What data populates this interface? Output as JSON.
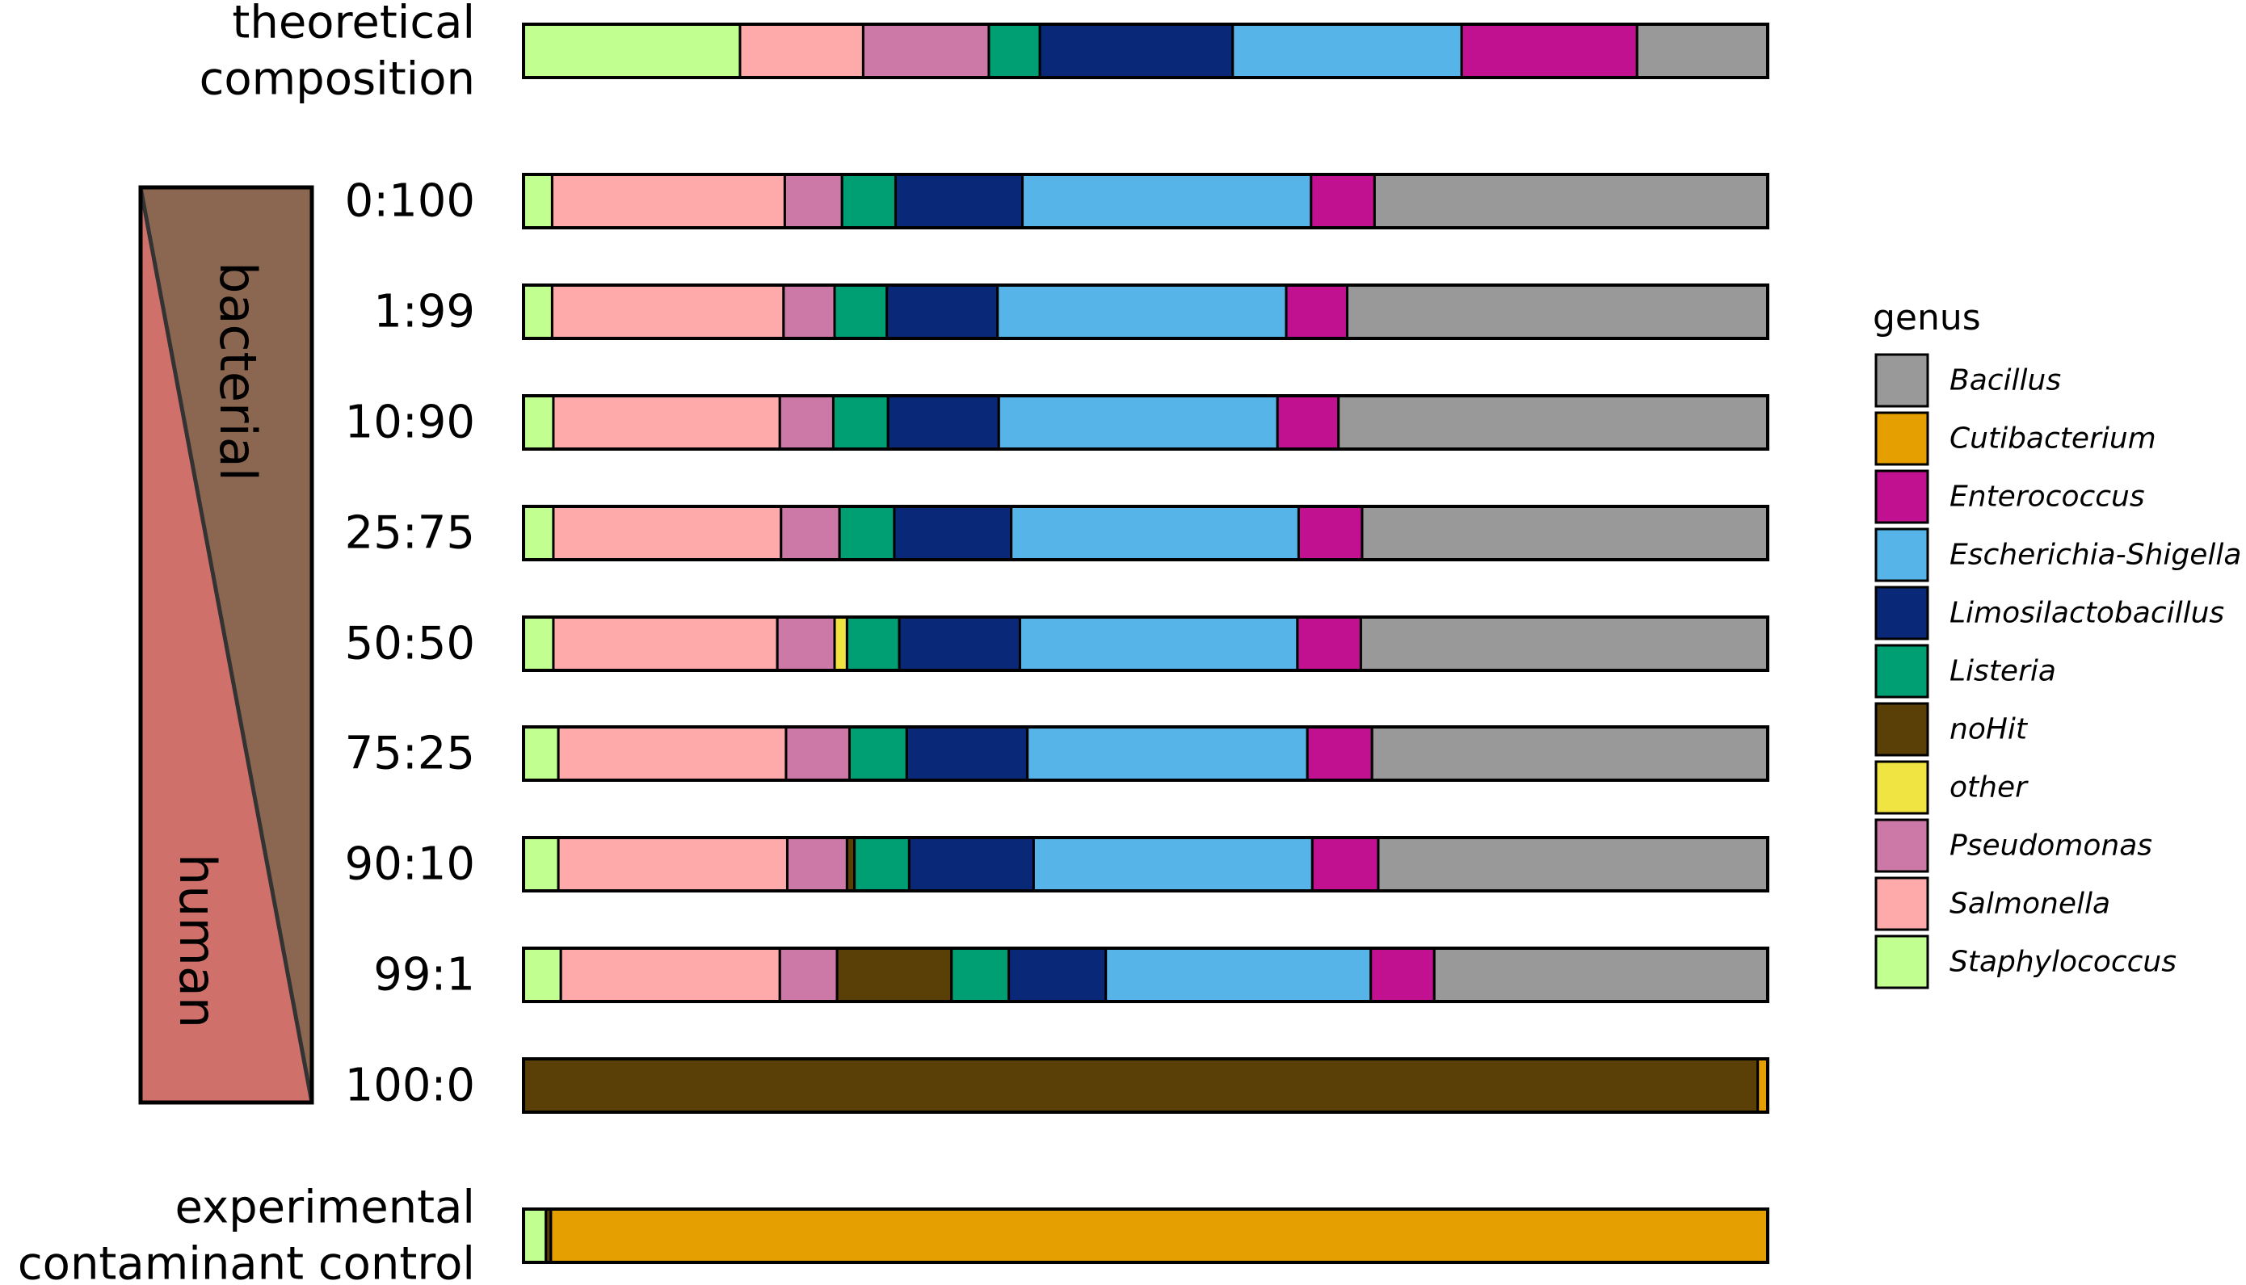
{
  "chart_data": {
    "type": "bar",
    "orientation": "horizontal",
    "stacked": true,
    "normalized": true,
    "legend": {
      "title": "genus",
      "placement": "right",
      "entries": [
        {
          "name": "Bacillus",
          "color": "#999999"
        },
        {
          "name": "Cutibacterium",
          "color": "#E69F00"
        },
        {
          "name": "Enterococcus",
          "color": "#C11190"
        },
        {
          "name": "Escherichia-Shigella",
          "color": "#56B4E9"
        },
        {
          "name": "Limosilactobacillus",
          "color": "#0A2878"
        },
        {
          "name": "Listeria",
          "color": "#009E73"
        },
        {
          "name": "noHit",
          "color": "#5A3F07"
        },
        {
          "name": "other",
          "color": "#F0E442"
        },
        {
          "name": "Pseudomonas",
          "color": "#CC79A7"
        },
        {
          "name": "Salmonella",
          "color": "#FFAAAA"
        },
        {
          "name": "Staphylococcus",
          "color": "#C0FF90"
        }
      ]
    },
    "gradient_panel": {
      "top_label": "bacterial",
      "bottom_label": "human",
      "top_color": "#8B6650",
      "bottom_color": "#D0706A"
    },
    "rows": [
      {
        "label": [
          "theoretical",
          "composition"
        ],
        "segments": [
          {
            "genus": "Staphylococcus",
            "value": 17.4
          },
          {
            "genus": "Salmonella",
            "value": 9.9
          },
          {
            "genus": "Pseudomonas",
            "value": 10.1
          },
          {
            "genus": "Listeria",
            "value": 4.1
          },
          {
            "genus": "Limosilactobacillus",
            "value": 15.5
          },
          {
            "genus": "Escherichia-Shigella",
            "value": 18.4
          },
          {
            "genus": "Enterococcus",
            "value": 14.1
          },
          {
            "genus": "Bacillus",
            "value": 10.5
          }
        ]
      },
      {
        "label": [
          "0:100"
        ],
        "segments": [
          {
            "genus": "Staphylococcus",
            "value": 2.3
          },
          {
            "genus": "Salmonella",
            "value": 18.7
          },
          {
            "genus": "Pseudomonas",
            "value": 4.6
          },
          {
            "genus": "Listeria",
            "value": 4.3
          },
          {
            "genus": "Limosilactobacillus",
            "value": 10.2
          },
          {
            "genus": "Escherichia-Shigella",
            "value": 23.2
          },
          {
            "genus": "Enterococcus",
            "value": 5.1
          },
          {
            "genus": "Bacillus",
            "value": 31.6
          }
        ]
      },
      {
        "label": [
          "1:99"
        ],
        "segments": [
          {
            "genus": "Staphylococcus",
            "value": 2.3
          },
          {
            "genus": "Salmonella",
            "value": 18.6
          },
          {
            "genus": "Pseudomonas",
            "value": 4.1
          },
          {
            "genus": "Listeria",
            "value": 4.2
          },
          {
            "genus": "Limosilactobacillus",
            "value": 8.9
          },
          {
            "genus": "Escherichia-Shigella",
            "value": 23.2
          },
          {
            "genus": "Enterococcus",
            "value": 4.9
          },
          {
            "genus": "Bacillus",
            "value": 33.8
          }
        ]
      },
      {
        "label": [
          "10:90"
        ],
        "segments": [
          {
            "genus": "Staphylococcus",
            "value": 2.4
          },
          {
            "genus": "Salmonella",
            "value": 18.2
          },
          {
            "genus": "Pseudomonas",
            "value": 4.3
          },
          {
            "genus": "Listeria",
            "value": 4.4
          },
          {
            "genus": "Limosilactobacillus",
            "value": 8.9
          },
          {
            "genus": "Escherichia-Shigella",
            "value": 22.4
          },
          {
            "genus": "Enterococcus",
            "value": 4.9
          },
          {
            "genus": "Bacillus",
            "value": 34.5
          }
        ]
      },
      {
        "label": [
          "25:75"
        ],
        "segments": [
          {
            "genus": "Staphylococcus",
            "value": 2.4
          },
          {
            "genus": "Salmonella",
            "value": 18.3
          },
          {
            "genus": "Pseudomonas",
            "value": 4.7
          },
          {
            "genus": "Listeria",
            "value": 4.4
          },
          {
            "genus": "Limosilactobacillus",
            "value": 9.4
          },
          {
            "genus": "Escherichia-Shigella",
            "value": 23.1
          },
          {
            "genus": "Enterococcus",
            "value": 5.1
          },
          {
            "genus": "Bacillus",
            "value": 32.6
          }
        ]
      },
      {
        "label": [
          "50:50"
        ],
        "segments": [
          {
            "genus": "Staphylococcus",
            "value": 2.4
          },
          {
            "genus": "Salmonella",
            "value": 18.0
          },
          {
            "genus": "Pseudomonas",
            "value": 4.6
          },
          {
            "genus": "other",
            "value": 1.0
          },
          {
            "genus": "Listeria",
            "value": 4.2
          },
          {
            "genus": "Limosilactobacillus",
            "value": 9.7
          },
          {
            "genus": "Escherichia-Shigella",
            "value": 22.3
          },
          {
            "genus": "Enterococcus",
            "value": 5.1
          },
          {
            "genus": "Bacillus",
            "value": 32.7
          }
        ]
      },
      {
        "label": [
          "75:25"
        ],
        "segments": [
          {
            "genus": "Staphylococcus",
            "value": 2.8
          },
          {
            "genus": "Salmonella",
            "value": 18.3
          },
          {
            "genus": "Pseudomonas",
            "value": 5.1
          },
          {
            "genus": "Listeria",
            "value": 4.6
          },
          {
            "genus": "Limosilactobacillus",
            "value": 9.7
          },
          {
            "genus": "Escherichia-Shigella",
            "value": 22.5
          },
          {
            "genus": "Enterococcus",
            "value": 5.2
          },
          {
            "genus": "Bacillus",
            "value": 31.8
          }
        ]
      },
      {
        "label": [
          "90:10"
        ],
        "segments": [
          {
            "genus": "Staphylococcus",
            "value": 2.8
          },
          {
            "genus": "Salmonella",
            "value": 18.4
          },
          {
            "genus": "Pseudomonas",
            "value": 4.8
          },
          {
            "genus": "noHit",
            "value": 0.6
          },
          {
            "genus": "Listeria",
            "value": 4.4
          },
          {
            "genus": "Limosilactobacillus",
            "value": 10.0
          },
          {
            "genus": "Escherichia-Shigella",
            "value": 22.4
          },
          {
            "genus": "Enterococcus",
            "value": 5.3
          },
          {
            "genus": "Bacillus",
            "value": 31.3
          }
        ]
      },
      {
        "label": [
          "99:1"
        ],
        "segments": [
          {
            "genus": "Staphylococcus",
            "value": 3.0
          },
          {
            "genus": "Salmonella",
            "value": 17.6
          },
          {
            "genus": "Pseudomonas",
            "value": 4.6
          },
          {
            "genus": "noHit",
            "value": 9.2
          },
          {
            "genus": "Listeria",
            "value": 4.6
          },
          {
            "genus": "Limosilactobacillus",
            "value": 7.8
          },
          {
            "genus": "Escherichia-Shigella",
            "value": 21.3
          },
          {
            "genus": "Enterococcus",
            "value": 5.1
          },
          {
            "genus": "Bacillus",
            "value": 26.8
          }
        ]
      },
      {
        "label": [
          "100:0"
        ],
        "segments": [
          {
            "genus": "noHit",
            "value": 99.2
          },
          {
            "genus": "Cutibacterium",
            "value": 0.8
          }
        ]
      },
      {
        "label": [
          "experimental",
          "contaminant control"
        ],
        "segments": [
          {
            "genus": "Staphylococcus",
            "value": 1.8
          },
          {
            "genus": "noHit",
            "value": 0.4
          },
          {
            "genus": "Cutibacterium",
            "value": 97.8
          }
        ]
      }
    ]
  }
}
